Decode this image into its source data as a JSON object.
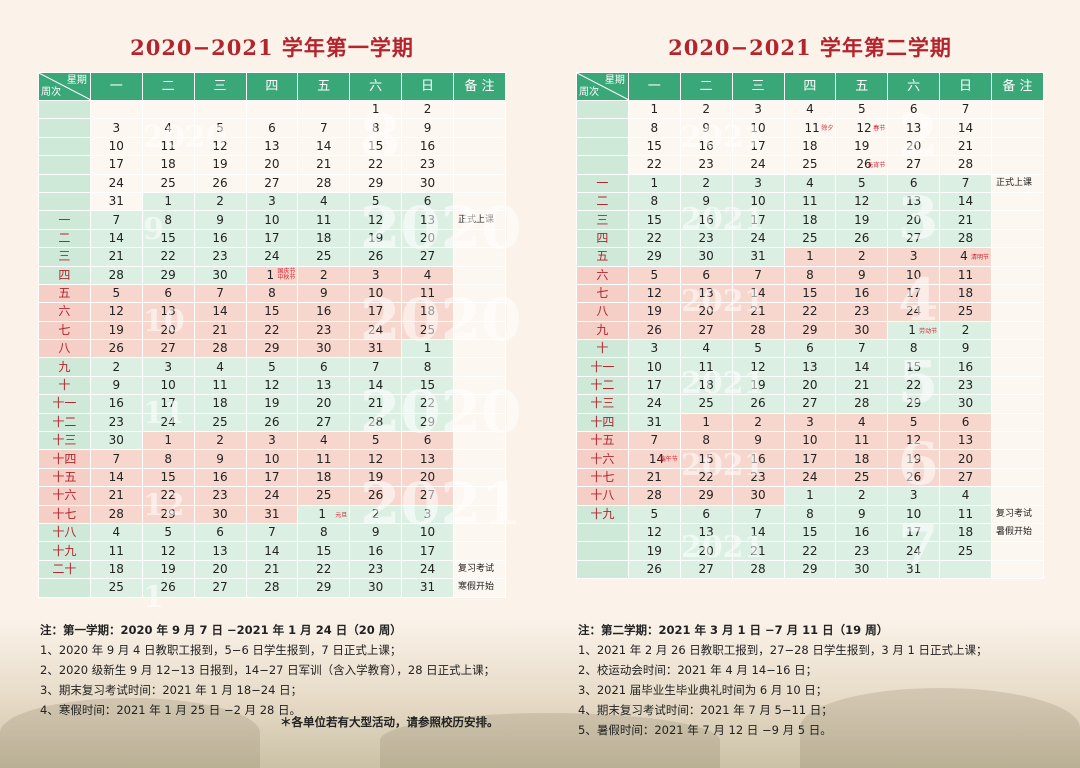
{
  "weekdays": [
    "一",
    "二",
    "三",
    "四",
    "五",
    "六",
    "日"
  ],
  "header": {
    "week_label": "星期",
    "row_label": "周次",
    "remark": "备 注"
  },
  "sem1": {
    "title": "2020−2021 学年第一学期",
    "rows": [
      {
        "w": "",
        "d": [
          "",
          "",
          "",
          "",
          "",
          "1",
          "2"
        ],
        "c": [
          "w",
          "w",
          "w",
          "w",
          "w",
          "w",
          "w"
        ],
        "n": ""
      },
      {
        "w": "",
        "d": [
          "3",
          "4",
          "5",
          "6",
          "7",
          "8",
          "9"
        ],
        "c": [
          "w",
          "w",
          "w",
          "w",
          "w",
          "w",
          "w"
        ],
        "n": ""
      },
      {
        "w": "",
        "d": [
          "10",
          "11",
          "12",
          "13",
          "14",
          "15",
          "16"
        ],
        "c": [
          "w",
          "w",
          "w",
          "w",
          "w",
          "w",
          "w"
        ],
        "n": ""
      },
      {
        "w": "",
        "d": [
          "17",
          "18",
          "19",
          "20",
          "21",
          "22",
          "23"
        ],
        "c": [
          "w",
          "w",
          "w",
          "w",
          "w",
          "w",
          "w"
        ],
        "n": ""
      },
      {
        "w": "",
        "d": [
          "24",
          "25",
          "26",
          "27",
          "28",
          "29",
          "30"
        ],
        "c": [
          "w",
          "w",
          "w",
          "w",
          "w",
          "w",
          "w"
        ],
        "n": ""
      },
      {
        "w": "",
        "d": [
          "31",
          "1",
          "2",
          "3",
          "4",
          "5",
          "6"
        ],
        "c": [
          "w",
          "g",
          "g",
          "g",
          "g",
          "g",
          "g"
        ],
        "n": ""
      },
      {
        "w": "一",
        "d": [
          "7",
          "8",
          "9",
          "10",
          "11",
          "12",
          "13"
        ],
        "c": [
          "g",
          "g",
          "g",
          "g",
          "g",
          "g",
          "g"
        ],
        "n": "正式上课"
      },
      {
        "w": "二",
        "d": [
          "14",
          "15",
          "16",
          "17",
          "18",
          "19",
          "20"
        ],
        "c": [
          "g",
          "g",
          "g",
          "g",
          "g",
          "g",
          "g"
        ],
        "n": ""
      },
      {
        "w": "三",
        "d": [
          "21",
          "22",
          "23",
          "24",
          "25",
          "26",
          "27"
        ],
        "c": [
          "g",
          "g",
          "g",
          "g",
          "g",
          "g",
          "g"
        ],
        "n": ""
      },
      {
        "w": "四",
        "d": [
          "28",
          "29",
          "30",
          "1",
          "2",
          "3",
          "4"
        ],
        "c": [
          "g",
          "g",
          "g",
          "p",
          "p",
          "p",
          "p"
        ],
        "n": "",
        "h": {
          "i": 3,
          "t": "国庆节\n中秋节"
        }
      },
      {
        "w": "五",
        "d": [
          "5",
          "6",
          "7",
          "8",
          "9",
          "10",
          "11"
        ],
        "c": [
          "p",
          "p",
          "p",
          "p",
          "p",
          "p",
          "p"
        ],
        "n": ""
      },
      {
        "w": "六",
        "d": [
          "12",
          "13",
          "14",
          "15",
          "16",
          "17",
          "18"
        ],
        "c": [
          "p",
          "p",
          "p",
          "p",
          "p",
          "p",
          "p"
        ],
        "n": ""
      },
      {
        "w": "七",
        "d": [
          "19",
          "20",
          "21",
          "22",
          "23",
          "24",
          "25"
        ],
        "c": [
          "p",
          "p",
          "p",
          "p",
          "p",
          "p",
          "p"
        ],
        "n": ""
      },
      {
        "w": "八",
        "d": [
          "26",
          "27",
          "28",
          "29",
          "30",
          "31",
          "1"
        ],
        "c": [
          "p",
          "p",
          "p",
          "p",
          "p",
          "p",
          "g"
        ],
        "n": ""
      },
      {
        "w": "九",
        "d": [
          "2",
          "3",
          "4",
          "5",
          "6",
          "7",
          "8"
        ],
        "c": [
          "g",
          "g",
          "g",
          "g",
          "g",
          "g",
          "g"
        ],
        "n": ""
      },
      {
        "w": "十",
        "d": [
          "9",
          "10",
          "11",
          "12",
          "13",
          "14",
          "15"
        ],
        "c": [
          "g",
          "g",
          "g",
          "g",
          "g",
          "g",
          "g"
        ],
        "n": ""
      },
      {
        "w": "十一",
        "d": [
          "16",
          "17",
          "18",
          "19",
          "20",
          "21",
          "22"
        ],
        "c": [
          "g",
          "g",
          "g",
          "g",
          "g",
          "g",
          "g"
        ],
        "n": ""
      },
      {
        "w": "十二",
        "d": [
          "23",
          "24",
          "25",
          "26",
          "27",
          "28",
          "29"
        ],
        "c": [
          "g",
          "g",
          "g",
          "g",
          "g",
          "g",
          "g"
        ],
        "n": ""
      },
      {
        "w": "十三",
        "d": [
          "30",
          "1",
          "2",
          "3",
          "4",
          "5",
          "6"
        ],
        "c": [
          "g",
          "p",
          "p",
          "p",
          "p",
          "p",
          "p"
        ],
        "n": ""
      },
      {
        "w": "十四",
        "d": [
          "7",
          "8",
          "9",
          "10",
          "11",
          "12",
          "13"
        ],
        "c": [
          "p",
          "p",
          "p",
          "p",
          "p",
          "p",
          "p"
        ],
        "n": ""
      },
      {
        "w": "十五",
        "d": [
          "14",
          "15",
          "16",
          "17",
          "18",
          "19",
          "20"
        ],
        "c": [
          "p",
          "p",
          "p",
          "p",
          "p",
          "p",
          "p"
        ],
        "n": ""
      },
      {
        "w": "十六",
        "d": [
          "21",
          "22",
          "23",
          "24",
          "25",
          "26",
          "27"
        ],
        "c": [
          "p",
          "p",
          "p",
          "p",
          "p",
          "p",
          "p"
        ],
        "n": ""
      },
      {
        "w": "十七",
        "d": [
          "28",
          "29",
          "30",
          "31",
          "1",
          "2",
          "3"
        ],
        "c": [
          "p",
          "p",
          "p",
          "p",
          "g",
          "g",
          "g"
        ],
        "n": "",
        "h": {
          "i": 4,
          "t": "元旦"
        }
      },
      {
        "w": "十八",
        "d": [
          "4",
          "5",
          "6",
          "7",
          "8",
          "9",
          "10"
        ],
        "c": [
          "g",
          "g",
          "g",
          "g",
          "g",
          "g",
          "g"
        ],
        "n": ""
      },
      {
        "w": "十九",
        "d": [
          "11",
          "12",
          "13",
          "14",
          "15",
          "16",
          "17"
        ],
        "c": [
          "g",
          "g",
          "g",
          "g",
          "g",
          "g",
          "g"
        ],
        "n": ""
      },
      {
        "w": "二十",
        "d": [
          "18",
          "19",
          "20",
          "21",
          "22",
          "23",
          "24"
        ],
        "c": [
          "g",
          "g",
          "g",
          "g",
          "g",
          "g",
          "g"
        ],
        "n": "复习考试"
      },
      {
        "w": "",
        "d": [
          "25",
          "26",
          "27",
          "28",
          "29",
          "30",
          "31"
        ],
        "c": [
          "g",
          "g",
          "g",
          "g",
          "g",
          "g",
          "g"
        ],
        "n": "寒假开始"
      }
    ],
    "notes": [
      "注：第一学期：2020 年 9 月 7 日 −2021 年 1 月 24 日（20 周）",
      "1、2020 年 9 月 4 日教职工报到，5−6 日学生报到，7 日正式上课；",
      "2、2020 级新生 9 月 12−13 日报到，14−27 日军训（含入学教育），28 日正式上课；",
      "3、期末复习考试时间：2021 年 1 月 18−24 日；",
      "4、寒假时间：2021 年 1 月 25 日 −2 月 28 日。"
    ],
    "footnote": "＊各单位若有大型活动，请参照校历安排。",
    "watermarks": [
      "2020",
      "8",
      "9",
      "2020",
      "10",
      "2020",
      "11",
      "2020",
      "12",
      "2021",
      "1"
    ]
  },
  "sem2": {
    "title": "2020−2021 学年第二学期",
    "rows": [
      {
        "w": "",
        "d": [
          "1",
          "2",
          "3",
          "4",
          "5",
          "6",
          "7"
        ],
        "c": [
          "w",
          "w",
          "w",
          "w",
          "w",
          "w",
          "w"
        ],
        "n": ""
      },
      {
        "w": "",
        "d": [
          "8",
          "9",
          "10",
          "11",
          "12",
          "13",
          "14"
        ],
        "c": [
          "w",
          "w",
          "w",
          "w",
          "w",
          "w",
          "w"
        ],
        "n": "",
        "h2": [
          {
            "i": 3,
            "t": "除夕"
          },
          {
            "i": 4,
            "t": "春节"
          }
        ]
      },
      {
        "w": "",
        "d": [
          "15",
          "16",
          "17",
          "18",
          "19",
          "20",
          "21"
        ],
        "c": [
          "w",
          "w",
          "w",
          "w",
          "w",
          "w",
          "w"
        ],
        "n": ""
      },
      {
        "w": "",
        "d": [
          "22",
          "23",
          "24",
          "25",
          "26",
          "27",
          "28"
        ],
        "c": [
          "w",
          "w",
          "w",
          "w",
          "w",
          "w",
          "w"
        ],
        "n": "",
        "h": {
          "i": 4,
          "t": "元宵节"
        }
      },
      {
        "w": "一",
        "d": [
          "1",
          "2",
          "3",
          "4",
          "5",
          "6",
          "7"
        ],
        "c": [
          "g",
          "g",
          "g",
          "g",
          "g",
          "g",
          "g"
        ],
        "n": "正式上课"
      },
      {
        "w": "二",
        "d": [
          "8",
          "9",
          "10",
          "11",
          "12",
          "13",
          "14"
        ],
        "c": [
          "g",
          "g",
          "g",
          "g",
          "g",
          "g",
          "g"
        ],
        "n": ""
      },
      {
        "w": "三",
        "d": [
          "15",
          "16",
          "17",
          "18",
          "19",
          "20",
          "21"
        ],
        "c": [
          "g",
          "g",
          "g",
          "g",
          "g",
          "g",
          "g"
        ],
        "n": ""
      },
      {
        "w": "四",
        "d": [
          "22",
          "23",
          "24",
          "25",
          "26",
          "27",
          "28"
        ],
        "c": [
          "g",
          "g",
          "g",
          "g",
          "g",
          "g",
          "g"
        ],
        "n": ""
      },
      {
        "w": "五",
        "d": [
          "29",
          "30",
          "31",
          "1",
          "2",
          "3",
          "4"
        ],
        "c": [
          "g",
          "g",
          "g",
          "p",
          "p",
          "p",
          "p"
        ],
        "n": "",
        "h": {
          "i": 6,
          "t": "清明节"
        }
      },
      {
        "w": "六",
        "d": [
          "5",
          "6",
          "7",
          "8",
          "9",
          "10",
          "11"
        ],
        "c": [
          "p",
          "p",
          "p",
          "p",
          "p",
          "p",
          "p"
        ],
        "n": ""
      },
      {
        "w": "七",
        "d": [
          "12",
          "13",
          "14",
          "15",
          "16",
          "17",
          "18"
        ],
        "c": [
          "p",
          "p",
          "p",
          "p",
          "p",
          "p",
          "p"
        ],
        "n": ""
      },
      {
        "w": "八",
        "d": [
          "19",
          "20",
          "21",
          "22",
          "23",
          "24",
          "25"
        ],
        "c": [
          "p",
          "p",
          "p",
          "p",
          "p",
          "p",
          "p"
        ],
        "n": ""
      },
      {
        "w": "九",
        "d": [
          "26",
          "27",
          "28",
          "29",
          "30",
          "1",
          "2"
        ],
        "c": [
          "p",
          "p",
          "p",
          "p",
          "p",
          "g",
          "g"
        ],
        "n": "",
        "h": {
          "i": 5,
          "t": "劳动节"
        }
      },
      {
        "w": "十",
        "d": [
          "3",
          "4",
          "5",
          "6",
          "7",
          "8",
          "9"
        ],
        "c": [
          "g",
          "g",
          "g",
          "g",
          "g",
          "g",
          "g"
        ],
        "n": ""
      },
      {
        "w": "十一",
        "d": [
          "10",
          "11",
          "12",
          "13",
          "14",
          "15",
          "16"
        ],
        "c": [
          "g",
          "g",
          "g",
          "g",
          "g",
          "g",
          "g"
        ],
        "n": ""
      },
      {
        "w": "十二",
        "d": [
          "17",
          "18",
          "19",
          "20",
          "21",
          "22",
          "23"
        ],
        "c": [
          "g",
          "g",
          "g",
          "g",
          "g",
          "g",
          "g"
        ],
        "n": ""
      },
      {
        "w": "十三",
        "d": [
          "24",
          "25",
          "26",
          "27",
          "28",
          "29",
          "30"
        ],
        "c": [
          "g",
          "g",
          "g",
          "g",
          "g",
          "g",
          "g"
        ],
        "n": ""
      },
      {
        "w": "十四",
        "d": [
          "31",
          "1",
          "2",
          "3",
          "4",
          "5",
          "6"
        ],
        "c": [
          "g",
          "p",
          "p",
          "p",
          "p",
          "p",
          "p"
        ],
        "n": ""
      },
      {
        "w": "十五",
        "d": [
          "7",
          "8",
          "9",
          "10",
          "11",
          "12",
          "13"
        ],
        "c": [
          "p",
          "p",
          "p",
          "p",
          "p",
          "p",
          "p"
        ],
        "n": ""
      },
      {
        "w": "十六",
        "d": [
          "14",
          "15",
          "16",
          "17",
          "18",
          "19",
          "20"
        ],
        "c": [
          "p",
          "p",
          "p",
          "p",
          "p",
          "p",
          "p"
        ],
        "n": "",
        "h": {
          "i": 0,
          "t": "端午节"
        }
      },
      {
        "w": "十七",
        "d": [
          "21",
          "22",
          "23",
          "24",
          "25",
          "26",
          "27"
        ],
        "c": [
          "p",
          "p",
          "p",
          "p",
          "p",
          "p",
          "p"
        ],
        "n": ""
      },
      {
        "w": "十八",
        "d": [
          "28",
          "29",
          "30",
          "1",
          "2",
          "3",
          "4"
        ],
        "c": [
          "p",
          "p",
          "p",
          "g",
          "g",
          "g",
          "g"
        ],
        "n": ""
      },
      {
        "w": "十九",
        "d": [
          "5",
          "6",
          "7",
          "8",
          "9",
          "10",
          "11"
        ],
        "c": [
          "g",
          "g",
          "g",
          "g",
          "g",
          "g",
          "g"
        ],
        "n": "复习考试"
      },
      {
        "w": "",
        "d": [
          "12",
          "13",
          "14",
          "15",
          "16",
          "17",
          "18"
        ],
        "c": [
          "g",
          "g",
          "g",
          "g",
          "g",
          "g",
          "g"
        ],
        "n": "暑假开始"
      },
      {
        "w": "",
        "d": [
          "19",
          "20",
          "21",
          "22",
          "23",
          "24",
          "25"
        ],
        "c": [
          "g",
          "g",
          "g",
          "g",
          "g",
          "g",
          "g"
        ],
        "n": ""
      },
      {
        "w": "",
        "d": [
          "26",
          "27",
          "28",
          "29",
          "30",
          "31",
          ""
        ],
        "c": [
          "g",
          "g",
          "g",
          "g",
          "g",
          "g",
          "g"
        ],
        "n": ""
      }
    ],
    "notes": [
      "注：第二学期：2021 年 3 月 1 日 −7 月 11 日（19 周）",
      "1、2021 年 2 月 26 日教职工报到，27−28 日学生报到，3 月 1 日正式上课；",
      "2、校运动会时间：2021 年 4 月 14−16 日；",
      "3、2021 届毕业生毕业典礼时间为 6 月 10 日；",
      "4、期末复习考试时间：2021 年 7 月 5−11 日；",
      "5、暑假时间：2021 年 7 月 12 日 −9 月 5 日。"
    ],
    "watermarks": [
      "2021",
      "2",
      "2021",
      "3",
      "2021",
      "4",
      "2021",
      "5",
      "2021",
      "6",
      "2021",
      "7"
    ]
  }
}
